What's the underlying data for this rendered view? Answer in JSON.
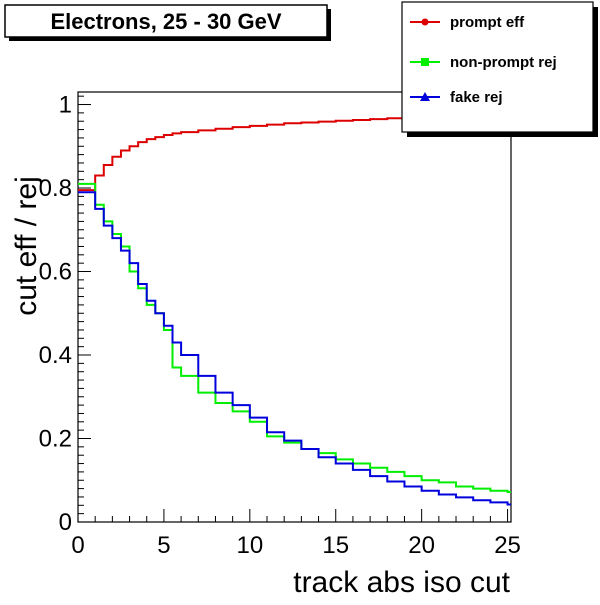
{
  "chart_data": {
    "type": "line",
    "title": "Electrons, 25 - 30 GeV",
    "xlabel": "track abs iso cut",
    "ylabel": "cut eff / rej",
    "xlim": [
      0,
      25.2
    ],
    "ylim": [
      0,
      1.03
    ],
    "x_ticks": [
      0,
      5,
      10,
      15,
      20,
      25
    ],
    "y_ticks": [
      0,
      0.2,
      0.4,
      0.6,
      0.8,
      1
    ],
    "x_tick_labels": [
      "0",
      "5",
      "10",
      "15",
      "20",
      "25"
    ],
    "y_tick_labels": [
      "0",
      "0.2",
      "0.4",
      "0.6",
      "0.8",
      "1"
    ],
    "legend_position": "top-right",
    "series": [
      {
        "name": "prompt eff",
        "color": "#dd0000",
        "marker": "circle",
        "x": [
          0,
          0.5,
          1,
          1.5,
          2,
          2.5,
          3,
          3.5,
          4,
          4.5,
          5,
          5.5,
          6,
          7,
          8,
          9,
          10,
          11,
          12,
          13,
          14,
          15,
          16,
          17,
          18,
          19,
          20,
          21,
          22,
          23,
          24,
          25,
          25.2
        ],
        "y": [
          0.795,
          0.795,
          0.83,
          0.855,
          0.875,
          0.89,
          0.9,
          0.91,
          0.917,
          0.922,
          0.927,
          0.931,
          0.934,
          0.938,
          0.942,
          0.946,
          0.949,
          0.952,
          0.955,
          0.957,
          0.959,
          0.961,
          0.963,
          0.965,
          0.967,
          0.969,
          0.971,
          0.973,
          0.975,
          0.977,
          0.978,
          0.98,
          0.98
        ]
      },
      {
        "name": "non-prompt rej",
        "color": "#00ee00",
        "marker": "square",
        "x": [
          0,
          0.5,
          1,
          1.5,
          2,
          2.5,
          3,
          3.5,
          4,
          4.5,
          5,
          5.5,
          6,
          7,
          8,
          9,
          10,
          11,
          12,
          13,
          14,
          15,
          16,
          17,
          18,
          19,
          20,
          21,
          22,
          23,
          24,
          25,
          25.2
        ],
        "y": [
          0.81,
          0.81,
          0.76,
          0.72,
          0.69,
          0.66,
          0.6,
          0.56,
          0.52,
          0.5,
          0.46,
          0.37,
          0.35,
          0.31,
          0.285,
          0.265,
          0.24,
          0.205,
          0.19,
          0.175,
          0.165,
          0.15,
          0.14,
          0.13,
          0.12,
          0.11,
          0.1,
          0.095,
          0.085,
          0.08,
          0.075,
          0.072,
          0.072
        ]
      },
      {
        "name": "fake rej",
        "color": "#0000dd",
        "marker": "triangle",
        "x": [
          0,
          0.5,
          1,
          1.5,
          2,
          2.5,
          3,
          3.5,
          4,
          4.5,
          5,
          5.5,
          6,
          7,
          8,
          9,
          10,
          11,
          12,
          13,
          14,
          15,
          16,
          17,
          18,
          19,
          20,
          21,
          22,
          23,
          24,
          25,
          25.2
        ],
        "y": [
          0.79,
          0.79,
          0.75,
          0.71,
          0.68,
          0.65,
          0.62,
          0.57,
          0.53,
          0.5,
          0.47,
          0.43,
          0.4,
          0.35,
          0.31,
          0.28,
          0.25,
          0.215,
          0.195,
          0.175,
          0.155,
          0.14,
          0.125,
          0.11,
          0.097,
          0.085,
          0.075,
          0.066,
          0.059,
          0.052,
          0.047,
          0.042,
          0.042
        ]
      }
    ]
  }
}
